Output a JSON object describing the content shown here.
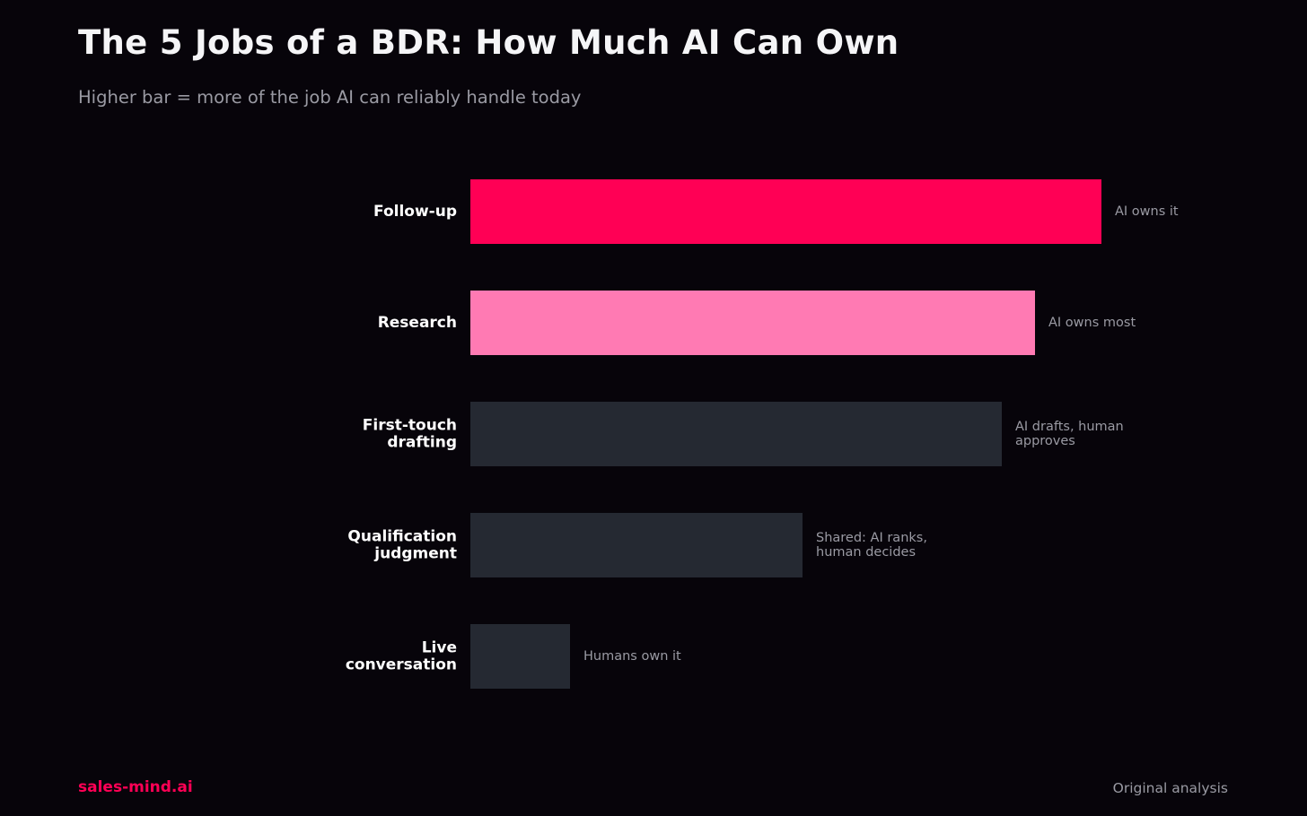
{
  "chart_data": {
    "type": "bar",
    "orientation": "horizontal",
    "title": "The 5 Jobs of a BDR: How Much AI Can Own",
    "subtitle": "Higher bar = more of the job AI can reliably handle today",
    "xlabel": "",
    "ylabel": "",
    "xlim": [
      0,
      100
    ],
    "grid": false,
    "legend": "none",
    "categories": [
      [
        "Follow-up"
      ],
      [
        "Research"
      ],
      [
        "First-touch",
        "drafting"
      ],
      [
        "Qualification",
        "judgment"
      ],
      [
        "Live",
        "conversation"
      ]
    ],
    "values": [
      95,
      85,
      80,
      50,
      15
    ],
    "annotations": [
      [
        "AI owns it"
      ],
      [
        "AI owns most"
      ],
      [
        "AI drafts, human",
        "approves"
      ],
      [
        "Shared: AI ranks,",
        "human decides"
      ],
      [
        "Humans own it"
      ]
    ],
    "colors": [
      "#ff0055",
      "#ff7ab3",
      "#252932",
      "#252932",
      "#252932"
    ],
    "label_color": "#ffffff",
    "annotation_color": "#9a9aa3"
  },
  "footer": {
    "brand": "sales-mind.ai",
    "source": "Original analysis"
  },
  "theme": {
    "background": "#07040a",
    "accent": "#ff0055"
  }
}
